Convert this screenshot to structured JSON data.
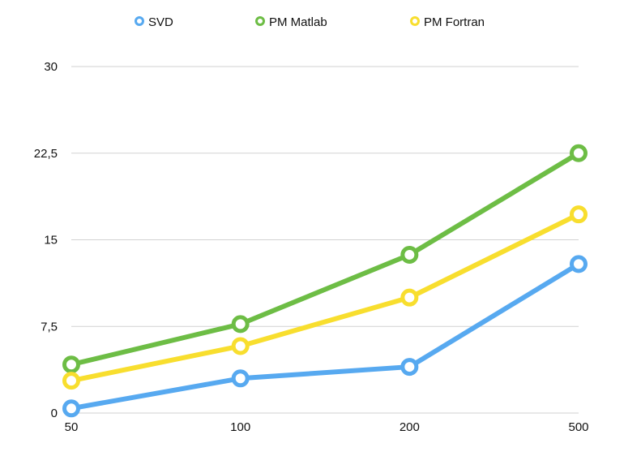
{
  "chart_data": {
    "type": "line",
    "categories": [
      "50",
      "100",
      "200",
      "500"
    ],
    "series": [
      {
        "name": "SVD",
        "color": "#57A9F0",
        "values": [
          0.4,
          3.0,
          4.0,
          12.9
        ]
      },
      {
        "name": "PM Matlab",
        "color": "#6DBD45",
        "values": [
          4.2,
          7.7,
          13.7,
          22.5
        ]
      },
      {
        "name": "PM Fortran",
        "color": "#F8DE2E",
        "values": [
          2.8,
          5.8,
          10.0,
          17.2
        ]
      }
    ],
    "yticks": [
      "0",
      "7,5",
      "15",
      "22,5",
      "30"
    ],
    "ytick_values": [
      0,
      7.5,
      15,
      22.5,
      30
    ],
    "ylim": [
      0,
      30
    ],
    "grid": true,
    "legend_position": "top-center"
  }
}
